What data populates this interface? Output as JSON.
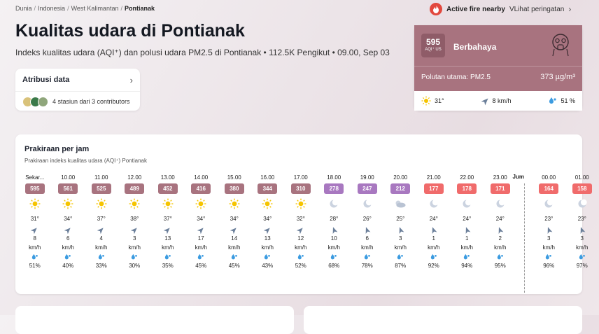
{
  "breadcrumb": [
    "Dunia",
    "Indonesia",
    "West Kalimantan",
    "Pontianak"
  ],
  "fire_alert": {
    "label": "Active fire nearby",
    "link": "VLihat peringatan"
  },
  "title": "Kualitas udara di Pontianak",
  "subtitle": "Indeks kualitas udara (AQI⁺) dan polusi udara PM2.5 di Pontianak • 112.5K Pengikut • 09.00, Sep 03",
  "attribution": {
    "title": "Atribusi data",
    "stations": "4 stasiun dari 3 contributors"
  },
  "aqi_card": {
    "value": "595",
    "unit": "AQI⁺ US",
    "level": "Berbahaya",
    "pollutant": "Polutan utama: PM2.5",
    "concentration": "373 µg/m³",
    "temp": "31°",
    "wind": "8 km/h",
    "humidity": "51 %"
  },
  "forecast": {
    "title": "Prakiraan per jam",
    "subtitle": "Prakiraan indeks kualitas udara (AQI⁺) Pontianak",
    "day_label": "Jum",
    "wind_unit": "km/h",
    "hours": [
      {
        "time": "Sekar...",
        "aqi": "595",
        "color": "#a8737f",
        "weather": "sun",
        "temp": "31°",
        "wind": "8",
        "wdir": 45,
        "hum": "51%"
      },
      {
        "time": "10.00",
        "aqi": "561",
        "color": "#a8737f",
        "weather": "sun",
        "temp": "34°",
        "wind": "6",
        "wdir": 45,
        "hum": "40%"
      },
      {
        "time": "11.00",
        "aqi": "525",
        "color": "#a8737f",
        "weather": "sun",
        "temp": "37°",
        "wind": "4",
        "wdir": 45,
        "hum": "33%"
      },
      {
        "time": "12.00",
        "aqi": "489",
        "color": "#a8737f",
        "weather": "sun",
        "temp": "38°",
        "wind": "3",
        "wdir": 45,
        "hum": "30%"
      },
      {
        "time": "13.00",
        "aqi": "452",
        "color": "#a8737f",
        "weather": "sun",
        "temp": "37°",
        "wind": "13",
        "wdir": 45,
        "hum": "35%"
      },
      {
        "time": "14.00",
        "aqi": "416",
        "color": "#a8737f",
        "weather": "sun",
        "temp": "34°",
        "wind": "17",
        "wdir": 45,
        "hum": "45%"
      },
      {
        "time": "15.00",
        "aqi": "380",
        "color": "#a8737f",
        "weather": "sun",
        "temp": "34°",
        "wind": "14",
        "wdir": 45,
        "hum": "45%"
      },
      {
        "time": "16.00",
        "aqi": "344",
        "color": "#a8737f",
        "weather": "sun",
        "temp": "34°",
        "wind": "13",
        "wdir": 45,
        "hum": "43%"
      },
      {
        "time": "17.00",
        "aqi": "310",
        "color": "#a8737f",
        "weather": "sun",
        "temp": "32°",
        "wind": "12",
        "wdir": 45,
        "hum": "52%"
      },
      {
        "time": "18.00",
        "aqi": "278",
        "color": "#a878c0",
        "weather": "moon",
        "temp": "28°",
        "wind": "10",
        "wdir": -20,
        "hum": "68%"
      },
      {
        "time": "19.00",
        "aqi": "247",
        "color": "#a878c0",
        "weather": "moon",
        "temp": "26°",
        "wind": "6",
        "wdir": -20,
        "hum": "78%"
      },
      {
        "time": "20.00",
        "aqi": "212",
        "color": "#a878c0",
        "weather": "cloud",
        "temp": "25°",
        "wind": "3",
        "wdir": -20,
        "hum": "87%"
      },
      {
        "time": "21.00",
        "aqi": "177",
        "color": "#f06b6b",
        "weather": "moon",
        "temp": "24°",
        "wind": "1",
        "wdir": -20,
        "hum": "92%"
      },
      {
        "time": "22.00",
        "aqi": "178",
        "color": "#f06b6b",
        "weather": "moon",
        "temp": "24°",
        "wind": "1",
        "wdir": -20,
        "hum": "94%"
      },
      {
        "time": "23.00",
        "aqi": "171",
        "color": "#f06b6b",
        "weather": "moon",
        "temp": "24°",
        "wind": "2",
        "wdir": -20,
        "hum": "95%"
      },
      {
        "time": "00.00",
        "aqi": "164",
        "color": "#f06b6b",
        "weather": "moon",
        "temp": "23°",
        "wind": "3",
        "wdir": -20,
        "hum": "96%"
      },
      {
        "time": "01.00",
        "aqi": "158",
        "color": "#f06b6b",
        "weather": "moon",
        "temp": "23°",
        "wind": "3",
        "wdir": -20,
        "hum": "97%"
      }
    ]
  }
}
